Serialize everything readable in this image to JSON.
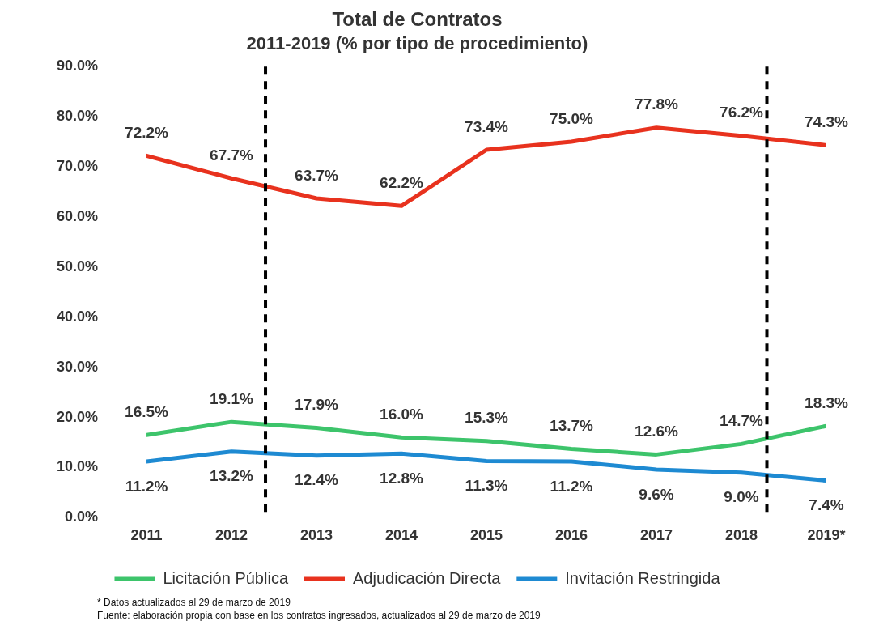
{
  "chart_data": {
    "type": "line",
    "title": "Total de Contratos",
    "subtitle": "2011-2019 (% por tipo de procedimiento)",
    "x": [
      2011,
      2012,
      2013,
      2014,
      2015,
      2016,
      2017,
      2018,
      2019
    ],
    "xlim": [
      2011,
      2019
    ],
    "xticks": [
      2011,
      2012,
      2013,
      2014,
      2015,
      2016,
      2017,
      2018,
      {
        "value": 2019,
        "label": "2019*"
      }
    ],
    "ylim": [
      0,
      90
    ],
    "yticks": [
      {
        "value": 0,
        "label": "0.0%"
      },
      {
        "value": 10,
        "label": "10.0%"
      },
      {
        "value": 20,
        "label": "20.0%"
      },
      {
        "value": 30,
        "label": "30.0%"
      },
      {
        "value": 40,
        "label": "40.0%"
      },
      {
        "value": 50,
        "label": "50.0%"
      },
      {
        "value": 60,
        "label": "60.0%"
      },
      {
        "value": 70,
        "label": "70.0%"
      },
      {
        "value": 80,
        "label": "80.0%"
      },
      {
        "value": 90,
        "label": "90.0%"
      }
    ],
    "series": [
      {
        "name": "Licitación Pública",
        "color": "#3dc46b",
        "values": [
          16.5,
          19.1,
          17.9,
          16.0,
          15.3,
          13.7,
          12.6,
          14.7,
          18.3
        ],
        "value_labels": [
          "16.5%",
          "19.1%",
          "17.9%",
          "16.0%",
          "15.3%",
          "13.7%",
          "12.6%",
          "14.7%",
          "18.3%"
        ]
      },
      {
        "name": "Adjudicación Directa",
        "color": "#e8321e",
        "values": [
          72.2,
          67.7,
          63.7,
          62.2,
          73.4,
          75.0,
          77.8,
          76.2,
          74.3
        ],
        "value_labels": [
          "72.2%",
          "67.7%",
          "63.7%",
          "62.2%",
          "73.4%",
          "75.0%",
          "77.8%",
          "76.2%",
          "74.3%"
        ]
      },
      {
        "name": "Invitación Restringida",
        "color": "#1e8ad2",
        "values": [
          11.2,
          13.2,
          12.4,
          12.8,
          11.3,
          11.2,
          9.6,
          9.0,
          7.4
        ],
        "value_labels": [
          "11.2%",
          "13.2%",
          "12.4%",
          "12.8%",
          "11.3%",
          "11.2%",
          "9.6%",
          "9.0%",
          "7.4%"
        ]
      }
    ],
    "ref_lines": [
      {
        "axis": "x",
        "value": 2012.4,
        "color": "#000000",
        "line_style": "dashed"
      },
      {
        "axis": "x",
        "value": 2018.3,
        "color": "#000000",
        "line_style": "dashed"
      }
    ],
    "grid": false,
    "legend": "bottom",
    "marker": "none",
    "line_style": "solid",
    "annotations": [
      "* Datos actualizados al 29 de marzo de 2019",
      "Fuente: elaboración propia con base en los contratos ingresados, actualizados al 29 de marzo de 2019"
    ]
  }
}
